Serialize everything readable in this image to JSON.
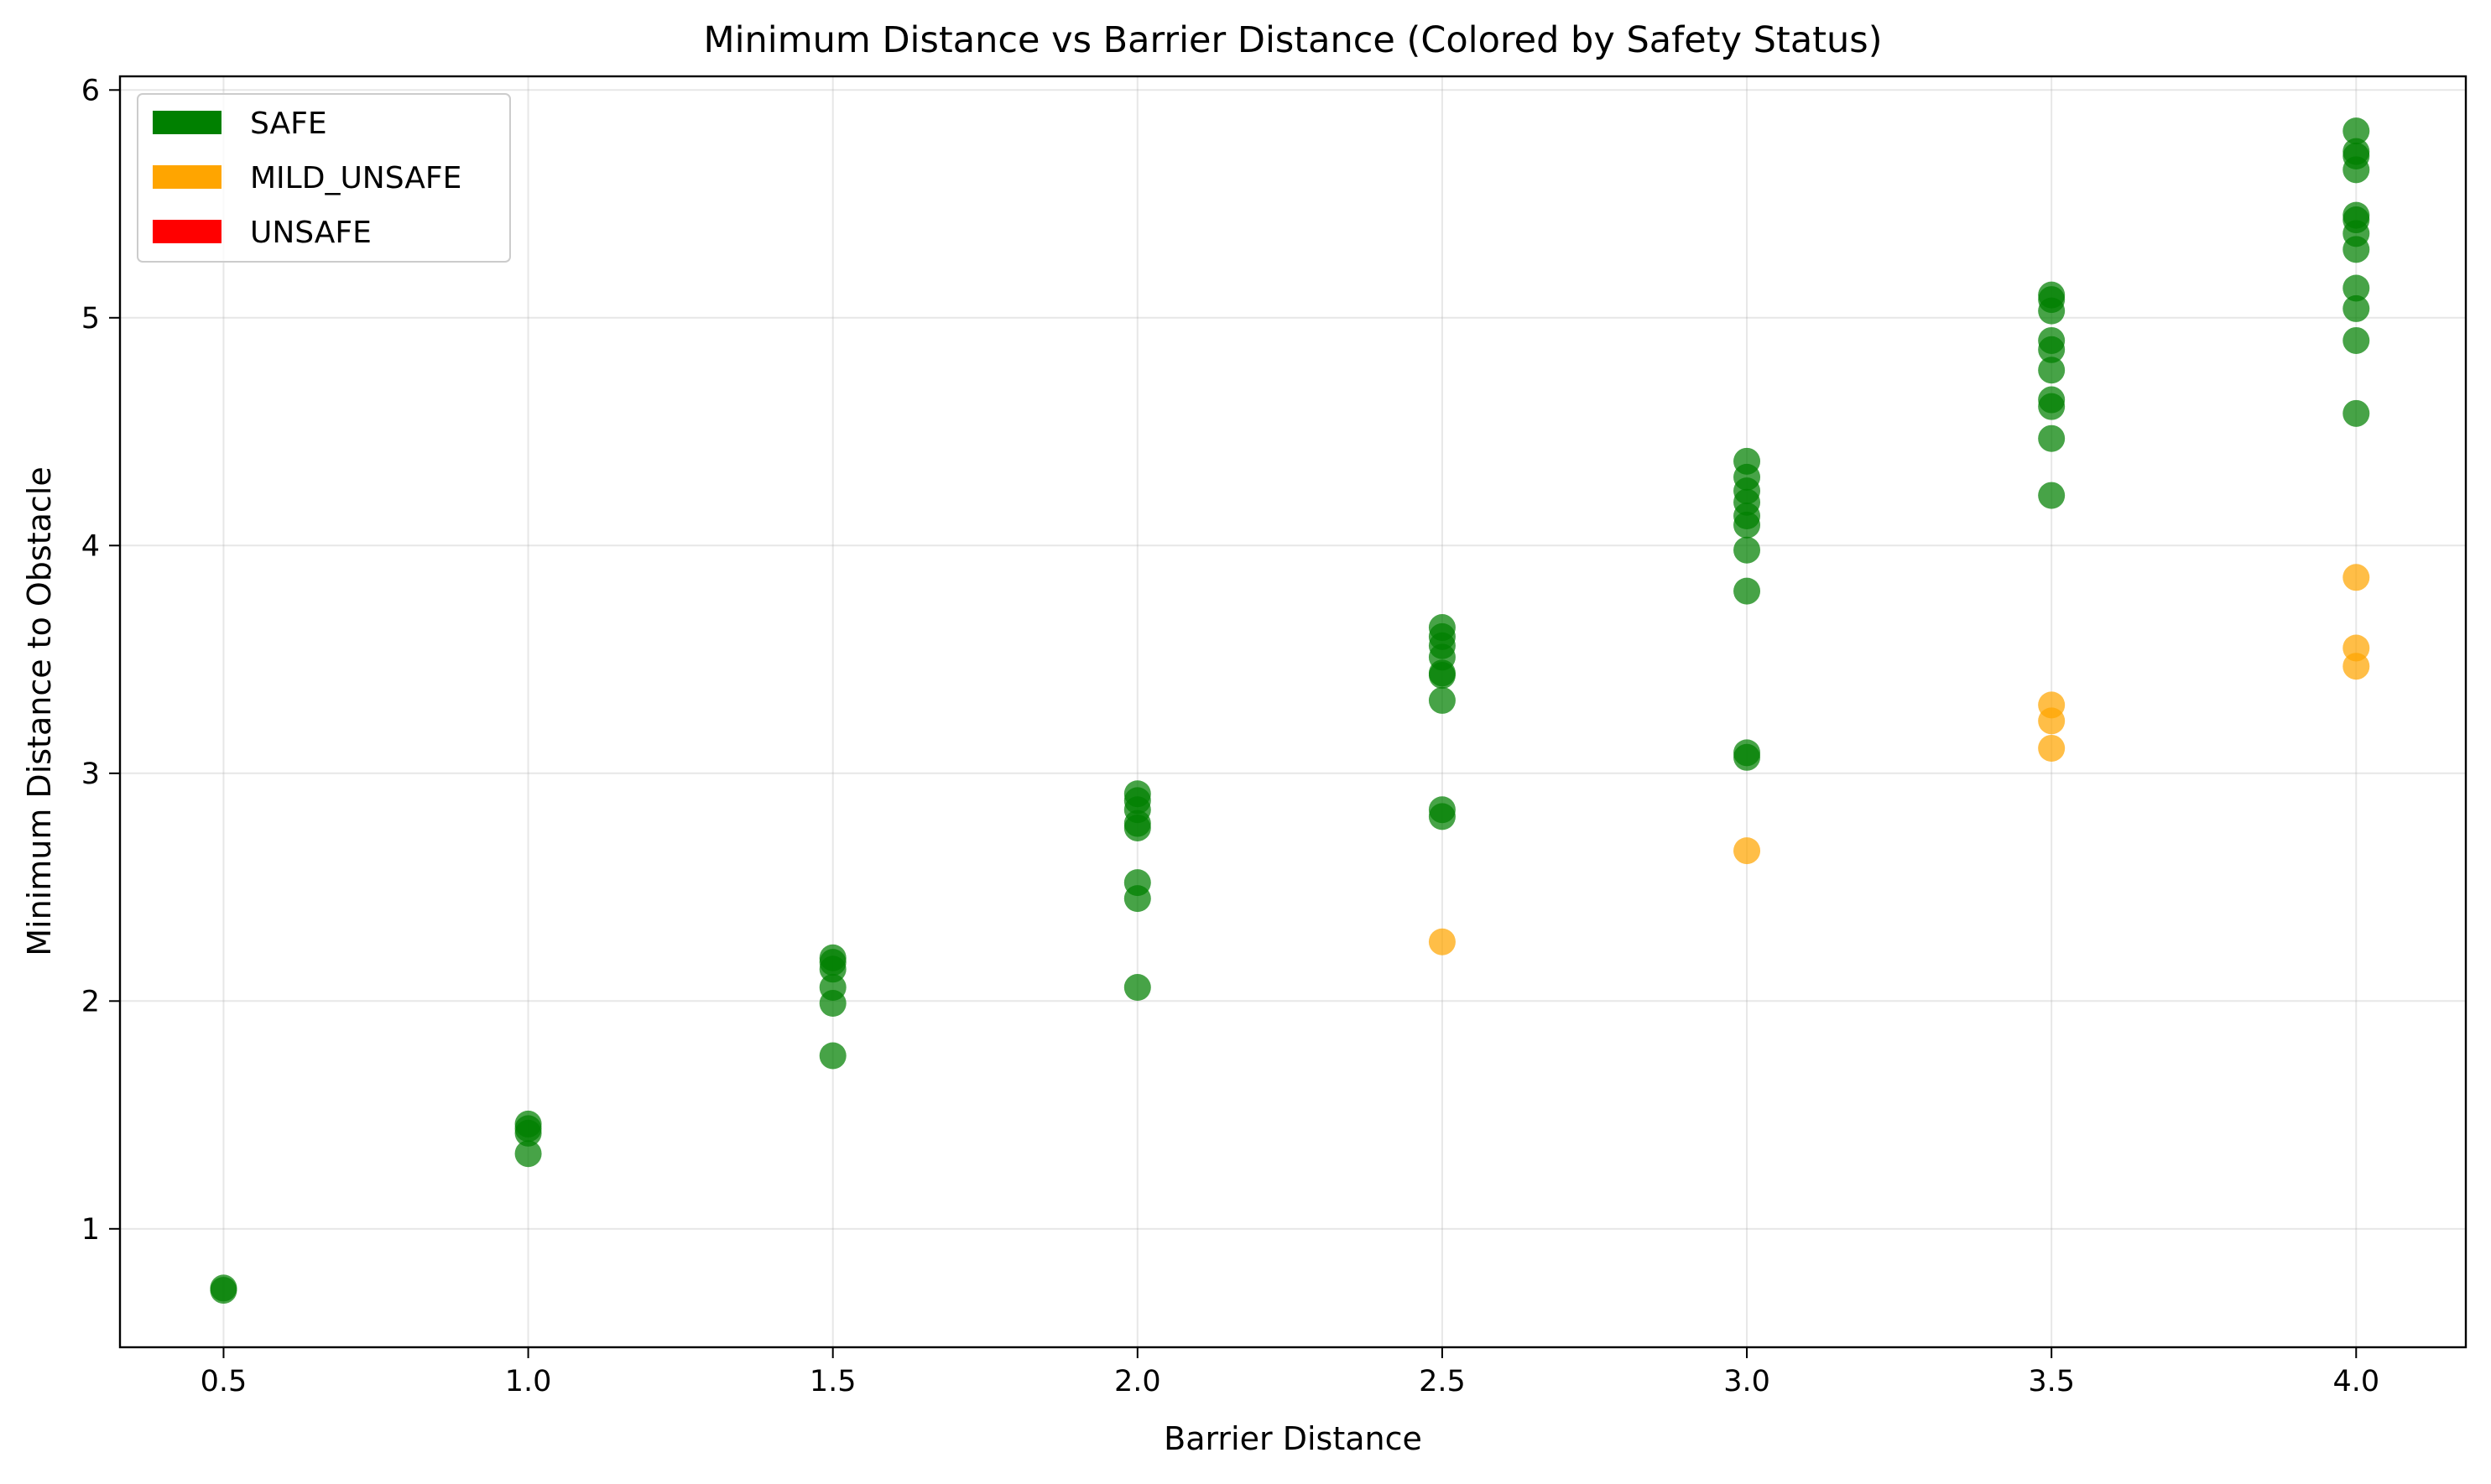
{
  "chart_data": {
    "type": "scatter",
    "title": "Minimum Distance vs Barrier Distance (Colored by Safety Status)",
    "xlabel": "Barrier Distance",
    "ylabel": "Minimum Distance to Obstacle",
    "xlim": [
      0.33,
      4.18
    ],
    "ylim": [
      0.48,
      6.06
    ],
    "xticks": [
      0.5,
      1.0,
      1.5,
      2.0,
      2.5,
      3.0,
      3.5,
      4.0
    ],
    "xtick_labels": [
      "0.5",
      "1.0",
      "1.5",
      "2.0",
      "2.5",
      "3.0",
      "3.5",
      "4.0"
    ],
    "yticks": [
      1,
      2,
      3,
      4,
      5,
      6
    ],
    "ytick_labels": [
      "1",
      "2",
      "3",
      "4",
      "5",
      "6"
    ],
    "grid": true,
    "legend_position": "top-left",
    "legend": [
      {
        "label": "SAFE",
        "color": "#008000"
      },
      {
        "label": "MILD_UNSAFE",
        "color": "#FFA500"
      },
      {
        "label": "UNSAFE",
        "color": "#FF0000"
      }
    ],
    "series": [
      {
        "name": "SAFE",
        "color": "#008000",
        "points": [
          [
            0.5,
            0.73
          ],
          [
            0.5,
            0.74
          ],
          [
            1.0,
            1.33
          ],
          [
            1.0,
            1.42
          ],
          [
            1.0,
            1.44
          ],
          [
            1.0,
            1.46
          ],
          [
            1.5,
            1.76
          ],
          [
            1.5,
            1.99
          ],
          [
            1.5,
            2.06
          ],
          [
            1.5,
            2.14
          ],
          [
            1.5,
            2.17
          ],
          [
            1.5,
            2.19
          ],
          [
            2.0,
            2.06
          ],
          [
            2.0,
            2.45
          ],
          [
            2.0,
            2.52
          ],
          [
            2.0,
            2.76
          ],
          [
            2.0,
            2.78
          ],
          [
            2.0,
            2.84
          ],
          [
            2.0,
            2.88
          ],
          [
            2.0,
            2.91
          ],
          [
            2.5,
            2.81
          ],
          [
            2.5,
            2.84
          ],
          [
            2.5,
            3.32
          ],
          [
            2.5,
            3.43
          ],
          [
            2.5,
            3.44
          ],
          [
            2.5,
            3.51
          ],
          [
            2.5,
            3.56
          ],
          [
            2.5,
            3.6
          ],
          [
            2.5,
            3.64
          ],
          [
            3.0,
            3.07
          ],
          [
            3.0,
            3.09
          ],
          [
            3.0,
            3.8
          ],
          [
            3.0,
            3.98
          ],
          [
            3.0,
            4.09
          ],
          [
            3.0,
            4.13
          ],
          [
            3.0,
            4.19
          ],
          [
            3.0,
            4.24
          ],
          [
            3.0,
            4.3
          ],
          [
            3.0,
            4.37
          ],
          [
            3.5,
            4.22
          ],
          [
            3.5,
            4.47
          ],
          [
            3.5,
            4.61
          ],
          [
            3.5,
            4.64
          ],
          [
            3.5,
            4.77
          ],
          [
            3.5,
            4.86
          ],
          [
            3.5,
            4.9
          ],
          [
            3.5,
            5.03
          ],
          [
            3.5,
            5.08
          ],
          [
            3.5,
            5.1
          ],
          [
            4.0,
            4.58
          ],
          [
            4.0,
            4.9
          ],
          [
            4.0,
            5.04
          ],
          [
            4.0,
            5.13
          ],
          [
            4.0,
            5.3
          ],
          [
            4.0,
            5.37
          ],
          [
            4.0,
            5.43
          ],
          [
            4.0,
            5.45
          ],
          [
            4.0,
            5.65
          ],
          [
            4.0,
            5.71
          ],
          [
            4.0,
            5.73
          ],
          [
            4.0,
            5.82
          ]
        ]
      },
      {
        "name": "MILD_UNSAFE",
        "color": "#FFA500",
        "points": [
          [
            2.5,
            2.26
          ],
          [
            3.0,
            2.66
          ],
          [
            3.5,
            3.11
          ],
          [
            3.5,
            3.23
          ],
          [
            3.5,
            3.3
          ],
          [
            4.0,
            3.47
          ],
          [
            4.0,
            3.55
          ],
          [
            4.0,
            3.86
          ]
        ]
      },
      {
        "name": "UNSAFE",
        "color": "#FF0000",
        "points": []
      }
    ]
  }
}
